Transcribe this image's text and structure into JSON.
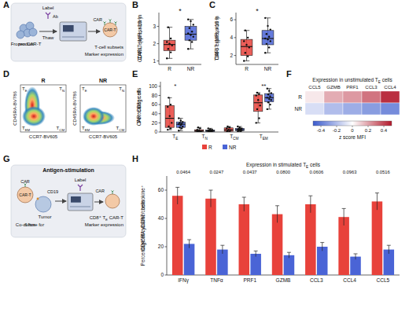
{
  "chart_data": [
    {
      "panel": "B",
      "type": "box",
      "y_label": "CD40L expression in CAR-T (MFI, ×10⁴)",
      "categories": [
        "R",
        "NR"
      ],
      "colors": [
        "#e8423b",
        "#4a64d6"
      ],
      "ylim": [
        0.8,
        3.8
      ],
      "yticks": [
        1,
        2,
        3
      ],
      "boxes": [
        {
          "min": 1.15,
          "q1": 1.6,
          "median": 1.95,
          "q3": 2.2,
          "max": 2.95,
          "points": [
            1.15,
            1.5,
            1.7,
            1.9,
            2.0,
            2.1,
            2.3,
            2.95
          ]
        },
        {
          "min": 1.7,
          "q1": 2.2,
          "median": 2.55,
          "q3": 3.0,
          "max": 3.4,
          "points": [
            1.7,
            2.1,
            2.2,
            2.4,
            2.5,
            2.6,
            2.7,
            2.9,
            3.1,
            3.3,
            3.4
          ]
        }
      ],
      "annotation": "*"
    },
    {
      "panel": "C",
      "type": "box",
      "y_label": "TIM-3 expression in CAR-T (MFI, ×10⁴)",
      "categories": [
        "R",
        "NR"
      ],
      "colors": [
        "#e8423b",
        "#4a64d6"
      ],
      "ylim": [
        1,
        6.8
      ],
      "yticks": [
        2,
        4,
        6
      ],
      "boxes": [
        {
          "min": 1.4,
          "q1": 2.0,
          "median": 3.0,
          "q3": 3.8,
          "max": 4.8,
          "points": [
            1.4,
            1.9,
            2.3,
            2.9,
            3.2,
            3.6,
            4.0,
            4.8
          ]
        },
        {
          "min": 2.3,
          "q1": 3.2,
          "median": 3.9,
          "q3": 4.8,
          "max": 6.2,
          "points": [
            2.3,
            2.9,
            3.3,
            3.6,
            3.8,
            3.9,
            4.1,
            4.4,
            4.9,
            5.3,
            6.2
          ]
        }
      ],
      "annotation": "*"
    },
    {
      "panel": "D",
      "type": "density",
      "panels": [
        "R",
        "NR"
      ],
      "x_label": "CCR7-BV605",
      "y_label": "CD45RA-BV786",
      "quadrants": [
        "TE",
        "TN",
        "TEM",
        "TCM"
      ]
    },
    {
      "panel": "E",
      "type": "box",
      "y_label": "Percentage of CAR⁺CD8⁺ cells",
      "categories": [
        "TE",
        "TN",
        "TCM",
        "TEM"
      ],
      "ylim": [
        0,
        110
      ],
      "yticks": [
        0,
        20,
        40,
        60,
        80,
        100
      ],
      "legend": "bottom",
      "annotations": [
        "*",
        null,
        null,
        "**"
      ],
      "series": [
        {
          "name": "R",
          "color": "#e8423b",
          "boxes": [
            {
              "min": 5,
              "q1": 10,
              "median": 30,
              "q3": 58,
              "max": 75,
              "points": [
                5,
                8,
                12,
                20,
                35,
                55,
                60,
                75
              ]
            },
            {
              "min": 0,
              "q1": 1,
              "median": 2.5,
              "q3": 5,
              "max": 10,
              "points": [
                0,
                1,
                1,
                2,
                3,
                5,
                8,
                10
              ]
            },
            {
              "min": 0,
              "q1": 1.5,
              "median": 4.5,
              "q3": 9,
              "max": 12,
              "points": [
                0,
                1,
                2,
                4,
                5,
                8,
                10,
                12
              ]
            },
            {
              "min": 20,
              "q1": 45,
              "median": 64,
              "q3": 81,
              "max": 86,
              "points": [
                20,
                30,
                50,
                58,
                70,
                80,
                83,
                86
              ]
            }
          ]
        },
        {
          "name": "NR",
          "color": "#4a64d6",
          "boxes": [
            {
              "min": 3,
              "q1": 10,
              "median": 17,
              "q3": 22,
              "max": 30,
              "points": [
                3,
                8,
                10,
                12,
                15,
                17,
                18,
                20,
                22,
                25,
                30
              ]
            },
            {
              "min": 0,
              "q1": 1,
              "median": 2.5,
              "q3": 4.5,
              "max": 8,
              "points": [
                0,
                1,
                1,
                2,
                2,
                3,
                3,
                4,
                5,
                6,
                8
              ]
            },
            {
              "min": 1,
              "q1": 3,
              "median": 5,
              "q3": 8,
              "max": 12,
              "points": [
                1,
                2,
                3,
                4,
                5,
                5,
                6,
                7,
                8,
                10,
                12
              ]
            },
            {
              "min": 50,
              "q1": 66,
              "median": 75,
              "q3": 84,
              "max": 95,
              "points": [
                50,
                60,
                65,
                70,
                72,
                75,
                78,
                82,
                85,
                90,
                95
              ]
            }
          ]
        }
      ]
    },
    {
      "panel": "F",
      "type": "heatmap",
      "title": "Expression in unstimulated TE cells",
      "x_categories": [
        "CCL5",
        "GZMB",
        "PRF1",
        "CCL3",
        "CCL4"
      ],
      "y_categories": [
        "R",
        "NR"
      ],
      "cells": [
        [
          0.05,
          0.18,
          0.22,
          0.3,
          0.45
        ],
        [
          -0.1,
          -0.2,
          -0.25,
          -0.3,
          -0.35
        ]
      ],
      "colorbar": {
        "range": [
          -0.5,
          0.5
        ],
        "ticks": [
          -0.4,
          -0.2,
          0,
          0.2,
          0.4
        ],
        "label": "z score MFI"
      }
    },
    {
      "panel": "H",
      "type": "bar",
      "title": "Expression in stimulated TE cells",
      "y_label": "Percentage of cytokine/chemokine⁺ CD45RA⁺CCR7⁻ cells",
      "categories": [
        "IFNγ",
        "TNFα",
        "PRF1",
        "GZMB",
        "CCL3",
        "CCL4",
        "CCL5"
      ],
      "ylim": [
        0,
        70
      ],
      "yticks": [
        0,
        20,
        40,
        60
      ],
      "annotations": [
        "0.0464",
        "0.0247",
        "0.0437",
        "0.0800",
        "0.0606",
        "0.0963",
        "0.0516"
      ],
      "series": [
        {
          "color": "#e8423b",
          "values": [
            56,
            54,
            50,
            43,
            50,
            41,
            52
          ],
          "errors": [
            6,
            6,
            5,
            6,
            6,
            6,
            6
          ]
        },
        {
          "color": "#4a64d6",
          "values": [
            22,
            18,
            15,
            14,
            20,
            13,
            18
          ],
          "errors": [
            3,
            3,
            2,
            2,
            3,
            2,
            3
          ]
        }
      ]
    }
  ],
  "diagrams": [
    {
      "panel": "A",
      "texts": [
        "Label",
        "Ab",
        "Thaw",
        "Frozen CAR-T product",
        "CAR",
        "CAR-T",
        "T-cell subsets",
        "Marker expression"
      ]
    },
    {
      "panel": "G",
      "title": "Antigen-stimulation",
      "texts": [
        "CAR",
        "CD19",
        "CAR-T",
        "Tumor",
        "Co-culture for 6 hrs",
        "Label",
        "CAR",
        "CD8⁺ TE CAR-T",
        "Marker expression"
      ]
    }
  ]
}
